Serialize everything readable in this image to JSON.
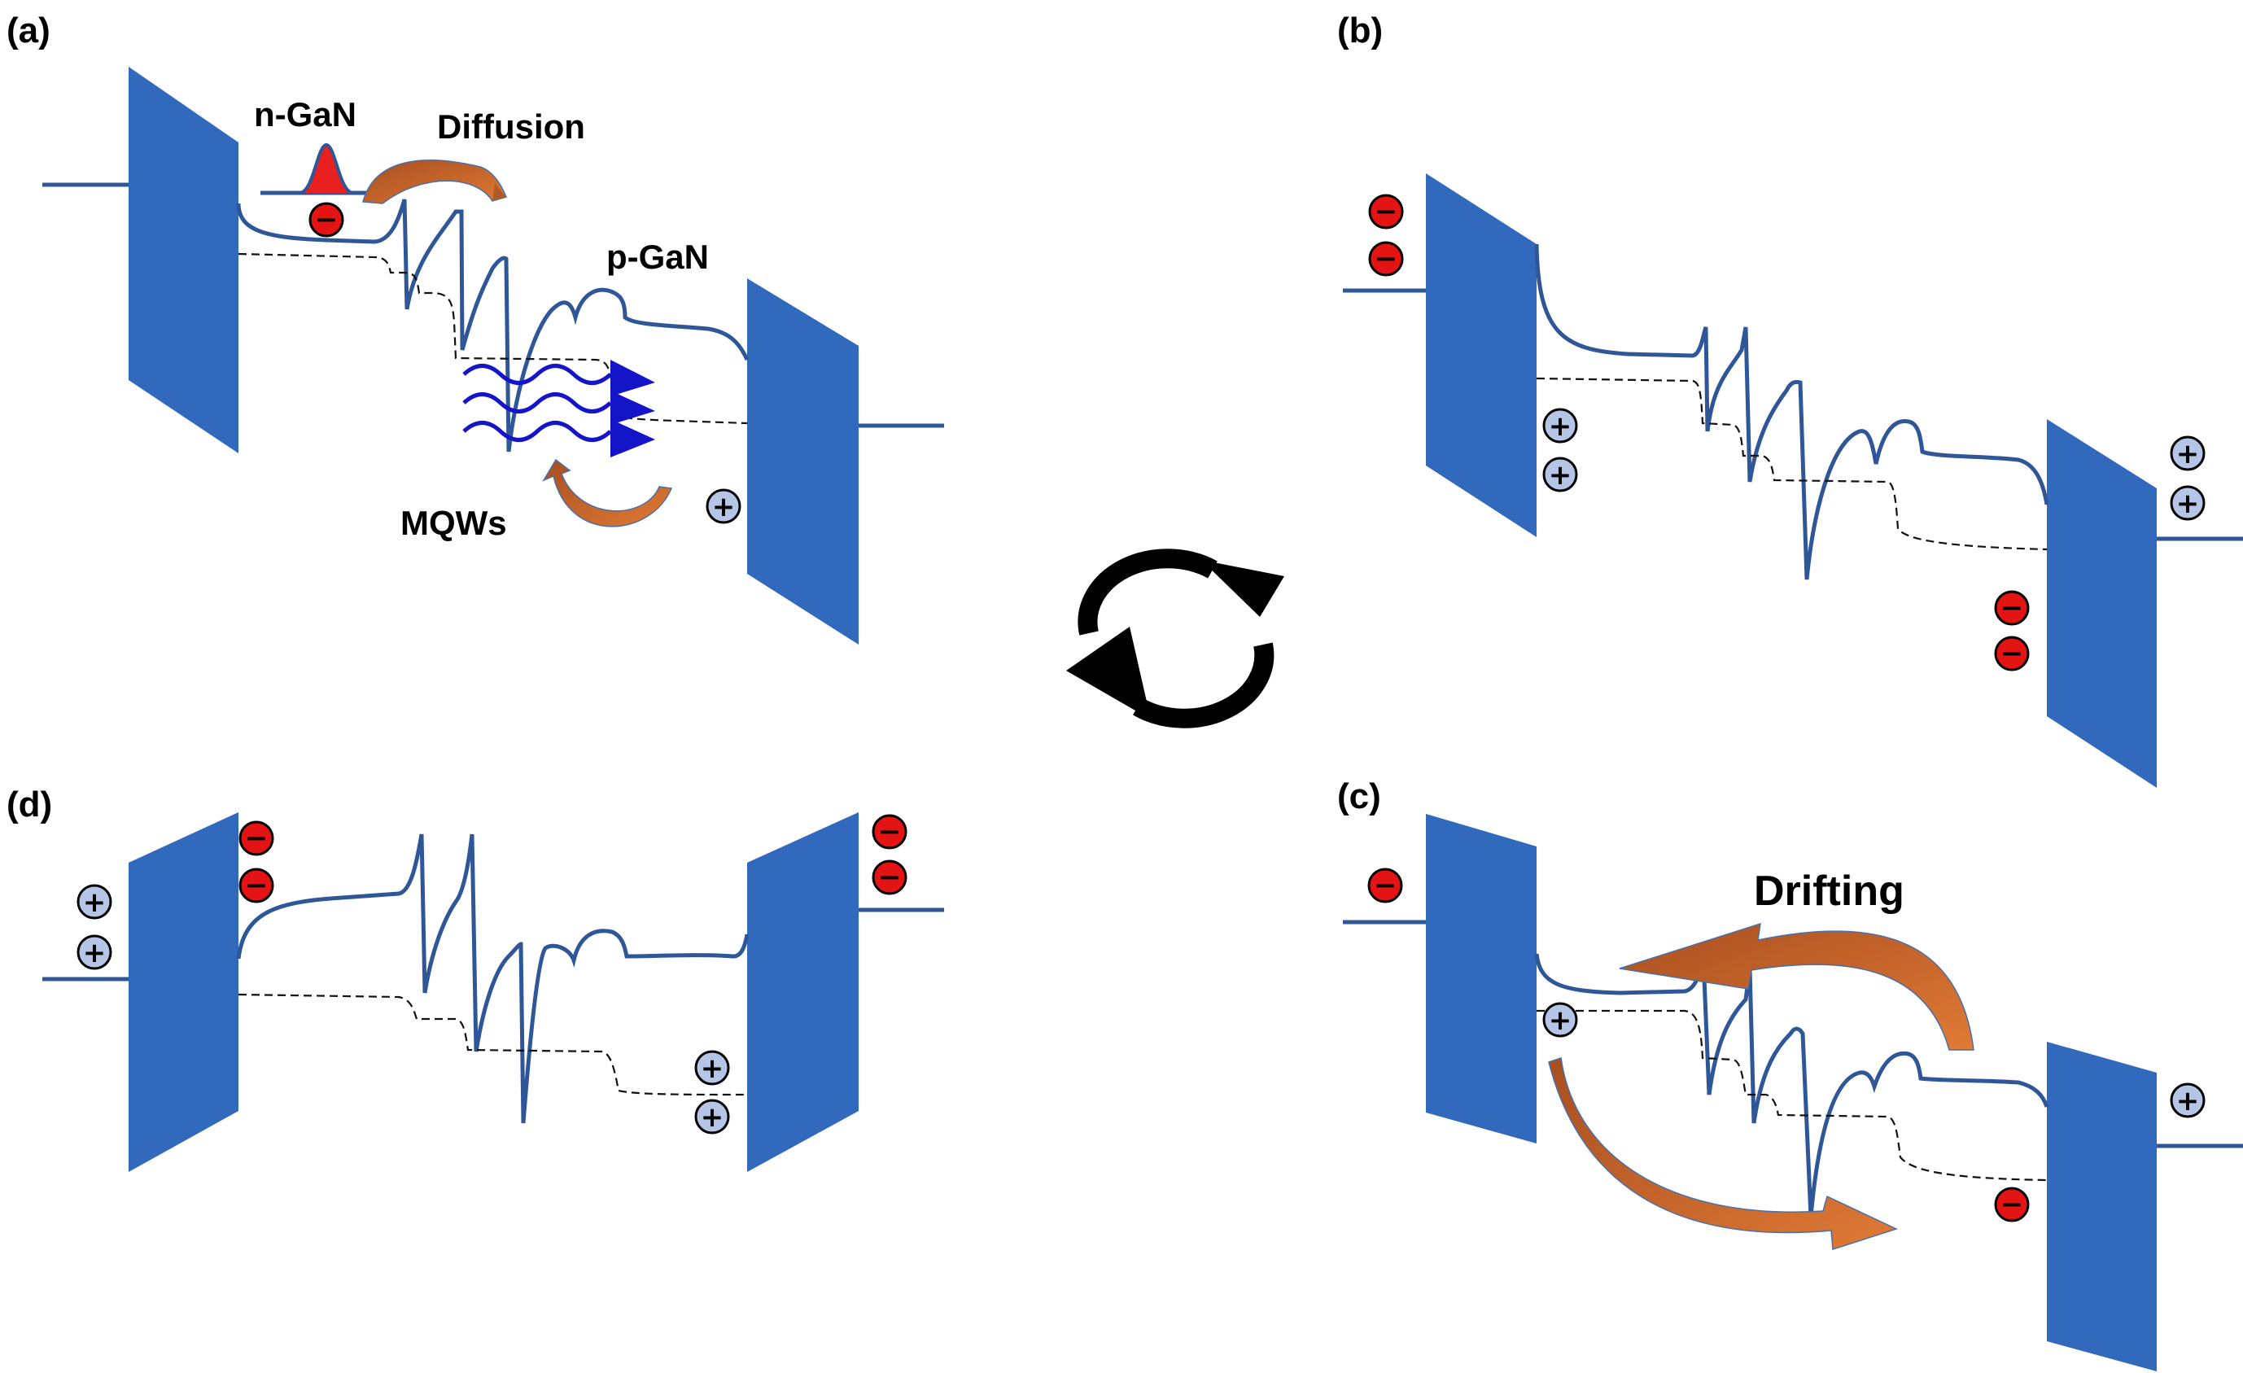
{
  "panels": {
    "a": {
      "tag": "(a)",
      "n_gan": "n-GaN",
      "diffusion": "Diffusion",
      "p_gan": "p-GaN",
      "mqws": "MQWs"
    },
    "b": {
      "tag": "(b)"
    },
    "c": {
      "tag": "(c)",
      "drifting": "Drifting"
    },
    "d": {
      "tag": "(d)"
    }
  },
  "symbols": {
    "electron": "−",
    "hole": "+"
  },
  "icons": [
    "cycle-arrows-icon",
    "emission-wave-icon",
    "electron-icon",
    "hole-icon"
  ],
  "colors": {
    "electrode": "#3169bd",
    "band": "#2f5797",
    "electron": "#e41414",
    "hole": "#b4c5e6",
    "arrow": "#c0652a",
    "emission": "#1414c8",
    "gaussian": "#e82020"
  }
}
